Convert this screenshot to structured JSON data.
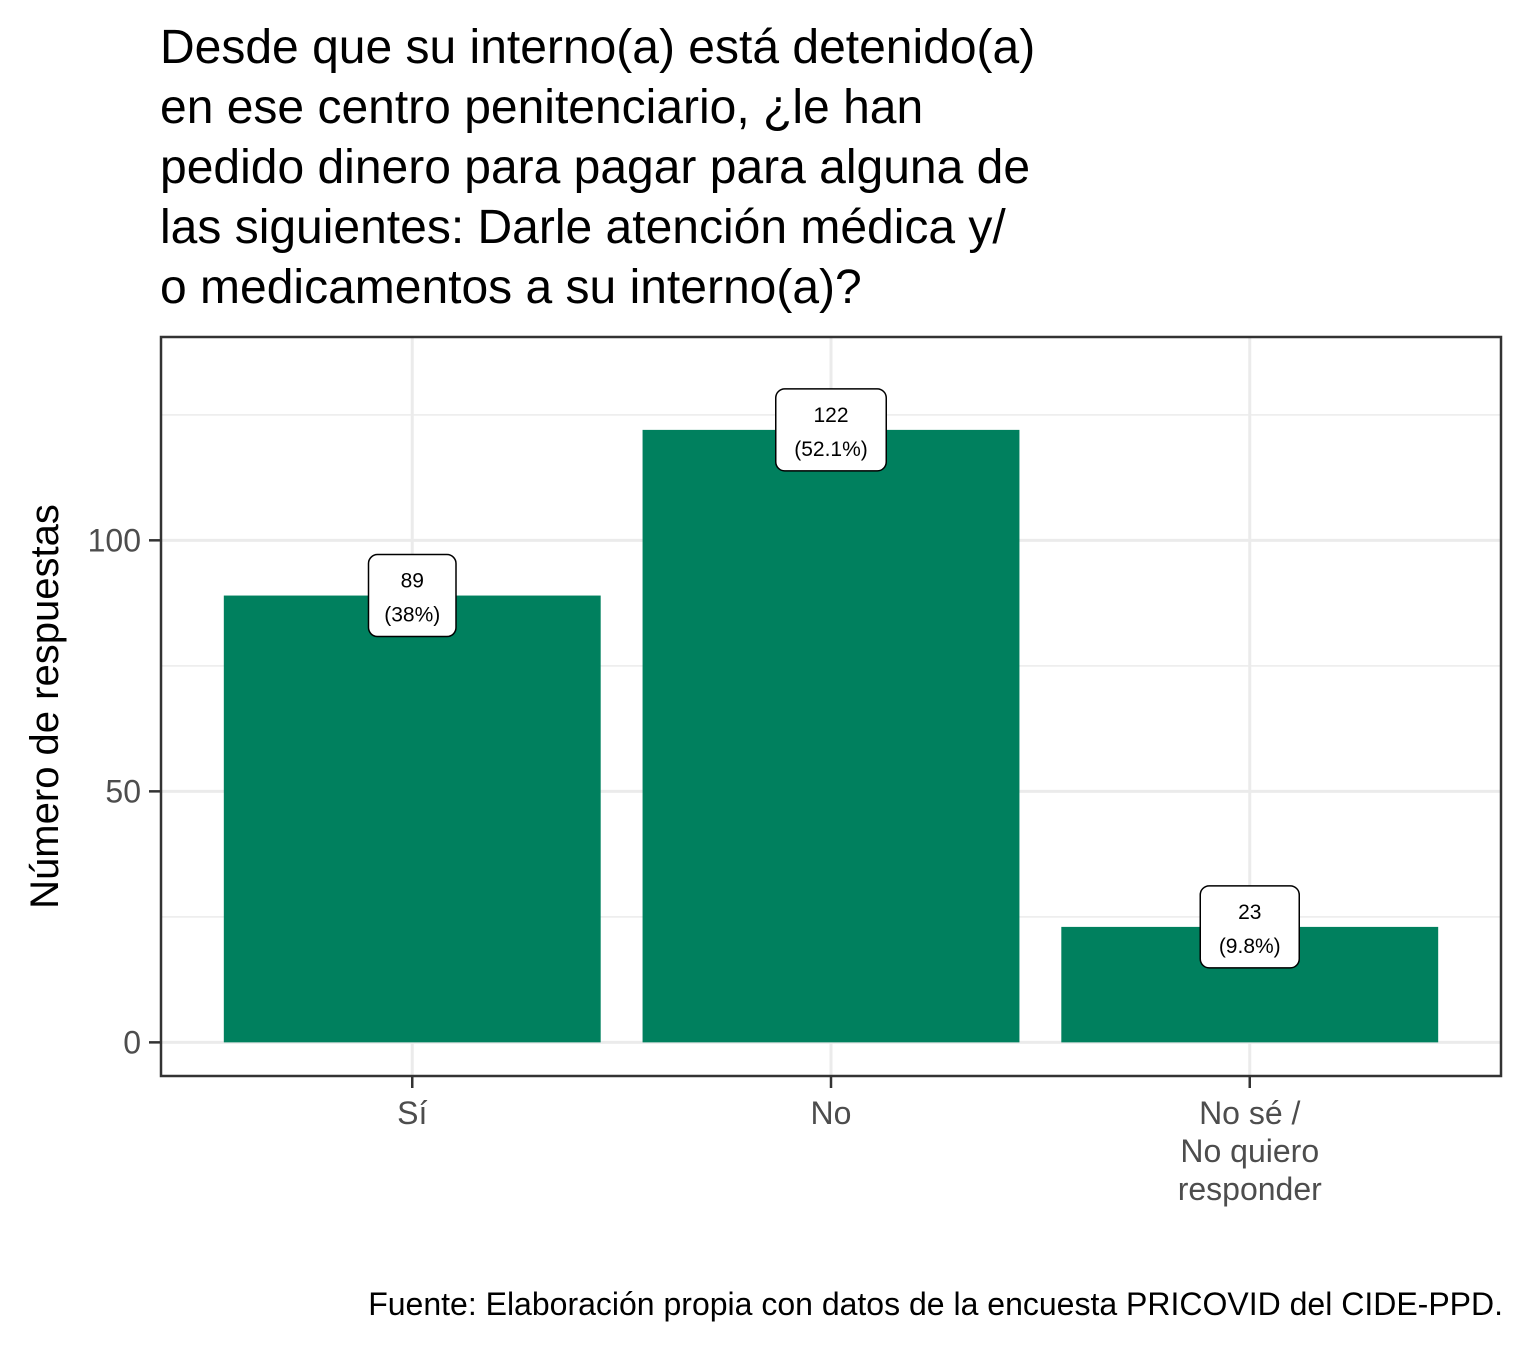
{
  "chart_data": {
    "type": "bar",
    "title_lines": [
      "Desde que su interno(a) está detenido(a)",
      "en ese centro penitenciario, ¿le han",
      "pedido dinero para pagar para alguna de",
      "las siguientes: Darle atención médica y/",
      "o medicamentos a su interno(a)?"
    ],
    "categories": [
      [
        "Sí"
      ],
      [
        "No"
      ],
      [
        "No sé /",
        "No quiero",
        "responder"
      ]
    ],
    "values": [
      89,
      122,
      23
    ],
    "label_counts": [
      "89",
      "122",
      "23"
    ],
    "label_percents": [
      "(38%)",
      "(52.1%)",
      "(9.8%)"
    ],
    "ylabel": "Número de respuestas",
    "xlabel": "",
    "ylim": [
      -6.7,
      140.5
    ],
    "yticks": [
      0,
      50,
      100
    ],
    "ytick_labels": [
      "0",
      "50",
      "100"
    ],
    "grid": true,
    "legend": "none",
    "caption": "Fuente: Elaboración propia con datos de la encuesta PRICOVID del CIDE-PPD.",
    "colors": {
      "bar": "#00805E",
      "grid": "#EBEBEB",
      "panel_border": "#333333",
      "tick_text": "#4D4D4D"
    }
  }
}
